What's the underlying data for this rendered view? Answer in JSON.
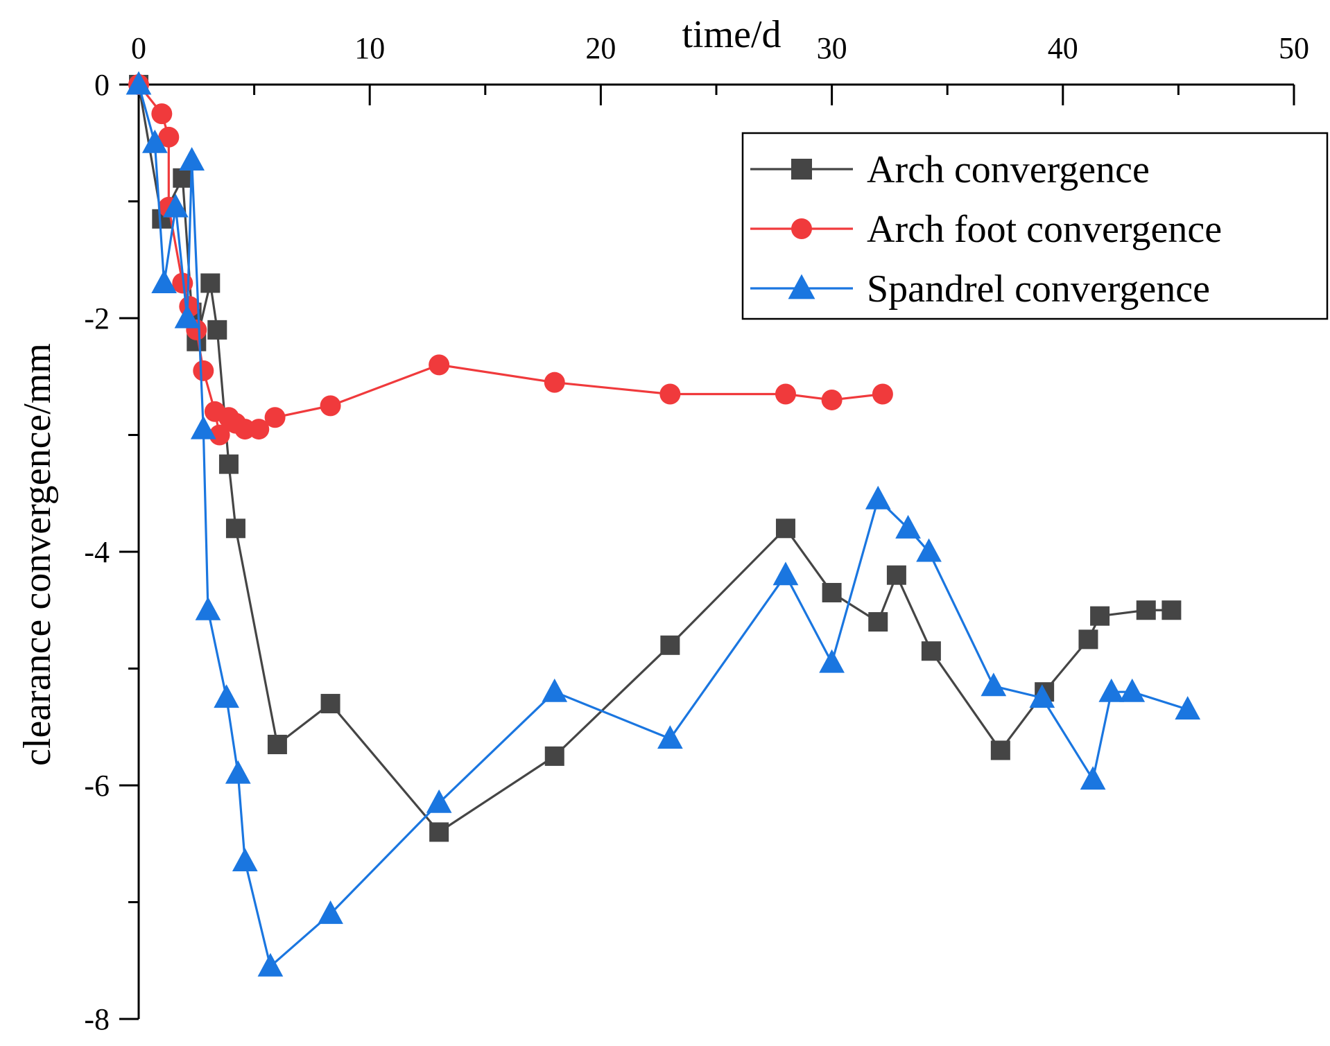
{
  "chart_data": {
    "type": "line",
    "title": "",
    "xlabel": "time/d",
    "ylabel": "clearance convergence/mm",
    "xlim": [
      0,
      50
    ],
    "ylim": [
      -8,
      0
    ],
    "x_ticks": [
      0,
      10,
      20,
      30,
      40,
      50
    ],
    "x_tick_labels": [
      "0",
      "10",
      "20",
      "30",
      "40",
      "50"
    ],
    "y_ticks": [
      0,
      -2,
      -4,
      -6,
      -8
    ],
    "y_tick_labels": [
      "0",
      "-2",
      "-4",
      "-6",
      "-8"
    ],
    "x_axis_position": "top",
    "legend_position": "top-right",
    "grid": false,
    "series": [
      {
        "name": "Arch convergence",
        "color": "#454545",
        "marker": "square",
        "x": [
          0,
          1.0,
          1.9,
          2.3,
          2.5,
          3.1,
          3.4,
          3.9,
          4.2,
          6.0,
          8.3,
          13.0,
          18.0,
          23.0,
          28.0,
          30.0,
          32.0,
          32.8,
          34.3,
          37.3,
          39.2,
          41.1,
          41.6,
          43.6,
          44.7
        ],
        "values": [
          0,
          -1.15,
          -0.8,
          -1.95,
          -2.2,
          -1.7,
          -2.1,
          -3.25,
          -3.8,
          -5.65,
          -5.3,
          -6.4,
          -5.75,
          -4.8,
          -3.8,
          -4.35,
          -4.6,
          -4.2,
          -4.85,
          -5.7,
          -5.2,
          -4.75,
          -4.55,
          -4.5,
          -4.5
        ]
      },
      {
        "name": "Arch foot convergence",
        "color": "#f03a3c",
        "marker": "circle",
        "x": [
          0,
          1.0,
          1.3,
          1.3,
          1.9,
          2.2,
          2.5,
          2.8,
          3.3,
          3.5,
          3.9,
          4.2,
          4.6,
          5.2,
          5.9,
          8.3,
          13.0,
          18.0,
          23.0,
          28.0,
          30.0,
          32.2
        ],
        "values": [
          0,
          -0.25,
          -0.45,
          -1.05,
          -1.7,
          -1.9,
          -2.1,
          -2.45,
          -2.8,
          -3.0,
          -2.85,
          -2.9,
          -2.95,
          -2.95,
          -2.85,
          -2.75,
          -2.4,
          -2.55,
          -2.65,
          -2.65,
          -2.7,
          -2.65
        ]
      },
      {
        "name": "Spandrel convergence",
        "color": "#1a76e0",
        "marker": "triangle",
        "x": [
          0,
          0.7,
          1.1,
          1.6,
          2.1,
          2.3,
          2.8,
          3.0,
          3.8,
          4.3,
          4.6,
          5.7,
          8.3,
          13.0,
          18.0,
          23.0,
          28.0,
          30.0,
          32.0,
          33.3,
          34.2,
          37.0,
          39.1,
          41.3,
          42.1,
          43.0,
          45.4
        ],
        "values": [
          0,
          -0.5,
          -1.7,
          -1.05,
          -2.0,
          -0.65,
          -2.95,
          -4.5,
          -5.25,
          -5.9,
          -6.65,
          -7.55,
          -7.1,
          -6.15,
          -5.2,
          -5.6,
          -4.2,
          -4.95,
          -3.55,
          -3.8,
          -4.0,
          -5.15,
          -5.25,
          -5.95,
          -5.2,
          -5.2,
          -5.35
        ]
      }
    ]
  }
}
